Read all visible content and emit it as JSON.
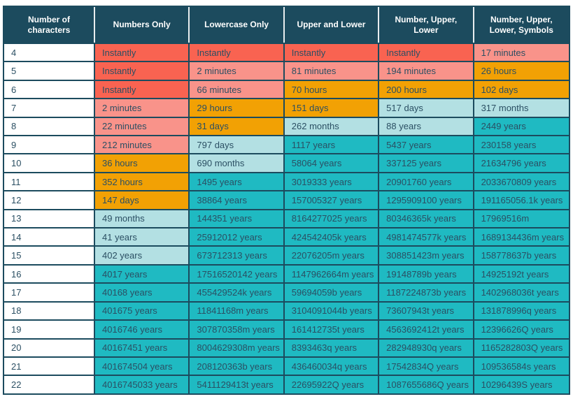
{
  "colors": {
    "header_bg": "#1c4b5e",
    "header_text": "#ffffff",
    "border": "#1c4b5e",
    "text": "#2b4f63",
    "row_bg": "#ffffff",
    "red": "#f96351",
    "salmon": "#f9938a",
    "orange": "#f2a104",
    "cyan": "#b3e0e3",
    "teal": "#1fbac2"
  },
  "chart_data": {
    "type": "table",
    "columns": [
      "Number of characters",
      "Numbers Only",
      "Lowercase Only",
      "Upper and Lower",
      "Number, Upper, Lower",
      "Number, Upper, Lower, Symbols"
    ],
    "rows": [
      {
        "chars": "4",
        "cells": [
          {
            "text": "Instantly",
            "level": "red"
          },
          {
            "text": "Instantly",
            "level": "red"
          },
          {
            "text": "Instantly",
            "level": "red"
          },
          {
            "text": "Instantly",
            "level": "red"
          },
          {
            "text": "17 minutes",
            "level": "salmon"
          }
        ]
      },
      {
        "chars": "5",
        "cells": [
          {
            "text": "Instantly",
            "level": "red"
          },
          {
            "text": "2 minutes",
            "level": "salmon"
          },
          {
            "text": "81 minutes",
            "level": "salmon"
          },
          {
            "text": "194 minutes",
            "level": "salmon"
          },
          {
            "text": "26 hours",
            "level": "orange"
          }
        ]
      },
      {
        "chars": "6",
        "cells": [
          {
            "text": "Instantly",
            "level": "red"
          },
          {
            "text": "66 minutes",
            "level": "salmon"
          },
          {
            "text": "70 hours",
            "level": "orange"
          },
          {
            "text": "200 hours",
            "level": "orange"
          },
          {
            "text": "102 days",
            "level": "orange"
          }
        ]
      },
      {
        "chars": "7",
        "cells": [
          {
            "text": "2 minutes",
            "level": "salmon"
          },
          {
            "text": "29 hours",
            "level": "orange"
          },
          {
            "text": "151 days",
            "level": "orange"
          },
          {
            "text": "517 days",
            "level": "cyan"
          },
          {
            "text": "317 months",
            "level": "cyan"
          }
        ]
      },
      {
        "chars": "8",
        "cells": [
          {
            "text": "22 minutes",
            "level": "salmon"
          },
          {
            "text": "31 days",
            "level": "orange"
          },
          {
            "text": "262 months",
            "level": "cyan"
          },
          {
            "text": "88 years",
            "level": "cyan"
          },
          {
            "text": "2449 years",
            "level": "teal"
          }
        ]
      },
      {
        "chars": "9",
        "cells": [
          {
            "text": "212 minutes",
            "level": "salmon"
          },
          {
            "text": "797 days",
            "level": "cyan"
          },
          {
            "text": "1117 years",
            "level": "teal"
          },
          {
            "text": "5437 years",
            "level": "teal"
          },
          {
            "text": "230158 years",
            "level": "teal"
          }
        ]
      },
      {
        "chars": "10",
        "cells": [
          {
            "text": "36 hours",
            "level": "orange"
          },
          {
            "text": "690 months",
            "level": "cyan"
          },
          {
            "text": "58064 years",
            "level": "teal"
          },
          {
            "text": "337125 years",
            "level": "teal"
          },
          {
            "text": "21634796 years",
            "level": "teal"
          }
        ]
      },
      {
        "chars": "11",
        "cells": [
          {
            "text": "352 hours",
            "level": "orange"
          },
          {
            "text": "1495 years",
            "level": "teal"
          },
          {
            "text": "3019333 years",
            "level": "teal"
          },
          {
            "text": "20901760 years",
            "level": "teal"
          },
          {
            "text": "2033670809 years",
            "level": "teal"
          }
        ]
      },
      {
        "chars": "12",
        "cells": [
          {
            "text": "147 days",
            "level": "orange"
          },
          {
            "text": "38864 years",
            "level": "teal"
          },
          {
            "text": "157005327 years",
            "level": "teal"
          },
          {
            "text": "1295909100 years",
            "level": "teal"
          },
          {
            "text": "191165056.1k years",
            "level": "teal"
          }
        ]
      },
      {
        "chars": "13",
        "cells": [
          {
            "text": "49 months",
            "level": "cyan"
          },
          {
            "text": "144351 years",
            "level": "teal"
          },
          {
            "text": "8164277025 years",
            "level": "teal"
          },
          {
            "text": "80346365k years",
            "level": "teal"
          },
          {
            "text": "17969516m",
            "level": "teal"
          }
        ]
      },
      {
        "chars": "14",
        "cells": [
          {
            "text": "41 years",
            "level": "cyan"
          },
          {
            "text": "25912012 years",
            "level": "teal"
          },
          {
            "text": "424542405k years",
            "level": "teal"
          },
          {
            "text": "4981474577k years",
            "level": "teal"
          },
          {
            "text": "1689134436m years",
            "level": "teal"
          }
        ]
      },
      {
        "chars": "15",
        "cells": [
          {
            "text": "402 years",
            "level": "cyan"
          },
          {
            "text": "673712313 years",
            "level": "teal"
          },
          {
            "text": "22076205m years",
            "level": "teal"
          },
          {
            "text": "308851423m years",
            "level": "teal"
          },
          {
            "text": "158778637b years",
            "level": "teal"
          }
        ]
      },
      {
        "chars": "16",
        "cells": [
          {
            "text": "4017 years",
            "level": "teal"
          },
          {
            "text": "17516520142 years",
            "level": "teal"
          },
          {
            "text": "1147962664m years",
            "level": "teal"
          },
          {
            "text": "19148789b years",
            "level": "teal"
          },
          {
            "text": "14925192t years",
            "level": "teal"
          }
        ]
      },
      {
        "chars": "17",
        "cells": [
          {
            "text": "40168 years",
            "level": "teal"
          },
          {
            "text": "455429524k years",
            "level": "teal"
          },
          {
            "text": "59694059b years",
            "level": "teal"
          },
          {
            "text": "1187224873b years",
            "level": "teal"
          },
          {
            "text": "1402968036t years",
            "level": "teal"
          }
        ]
      },
      {
        "chars": "18",
        "cells": [
          {
            "text": "401675 years",
            "level": "teal"
          },
          {
            "text": "11841168m years",
            "level": "teal"
          },
          {
            "text": "3104091044b years",
            "level": "teal"
          },
          {
            "text": "73607943t years",
            "level": "teal"
          },
          {
            "text": "131878996q years",
            "level": "teal"
          }
        ]
      },
      {
        "chars": "19",
        "cells": [
          {
            "text": "4016746 years",
            "level": "teal"
          },
          {
            "text": "307870358m years",
            "level": "teal"
          },
          {
            "text": "161412735t years",
            "level": "teal"
          },
          {
            "text": "4563692412t years",
            "level": "teal"
          },
          {
            "text": "12396626Q years",
            "level": "teal"
          }
        ]
      },
      {
        "chars": "20",
        "cells": [
          {
            "text": "40167451 years",
            "level": "teal"
          },
          {
            "text": "8004629308m years",
            "level": "teal"
          },
          {
            "text": "8393463q years",
            "level": "teal"
          },
          {
            "text": "282948930q years",
            "level": "teal"
          },
          {
            "text": "1165282803Q years",
            "level": "teal"
          }
        ]
      },
      {
        "chars": "21",
        "cells": [
          {
            "text": "401674504 years",
            "level": "teal"
          },
          {
            "text": "208120363b years",
            "level": "teal"
          },
          {
            "text": "436460034q years",
            "level": "teal"
          },
          {
            "text": "17542834Q years",
            "level": "teal"
          },
          {
            "text": "109536584s years",
            "level": "teal"
          }
        ]
      },
      {
        "chars": "22",
        "cells": [
          {
            "text": "4016745033 years",
            "level": "teal"
          },
          {
            "text": "5411129413t years",
            "level": "teal"
          },
          {
            "text": "22695922Q years",
            "level": "teal"
          },
          {
            "text": "1087655686Q years",
            "level": "teal"
          },
          {
            "text": "10296439S years",
            "level": "teal"
          }
        ]
      }
    ]
  }
}
